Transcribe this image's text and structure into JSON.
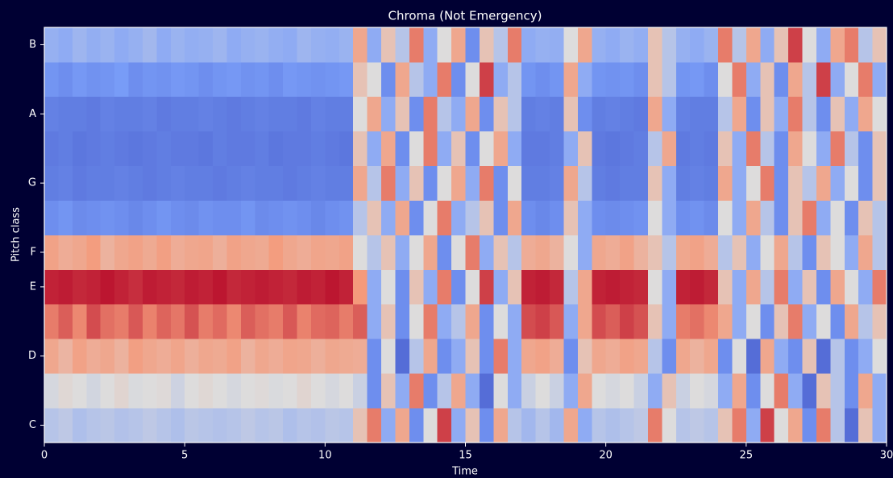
{
  "chart_data": {
    "type": "heatmap",
    "title": "Chroma (Not Emergency)",
    "x_label": "Time",
    "y_label": "Pitch class",
    "colormap": "coolwarm",
    "zlim": [
      0,
      1
    ],
    "xlim": [
      0,
      30
    ],
    "xticks": [
      0,
      5,
      10,
      15,
      20,
      25,
      30
    ],
    "x": [
      0,
      0.5,
      1,
      1.5,
      2,
      2.5,
      3,
      3.5,
      4,
      4.5,
      5,
      5.5,
      6,
      6.5,
      7,
      7.5,
      8,
      8.5,
      9,
      9.5,
      10,
      10.5,
      11,
      11.5,
      12,
      12.5,
      13,
      13.5,
      14,
      14.5,
      15,
      15.5,
      16,
      16.5,
      17,
      17.5,
      18,
      18.5,
      19,
      19.5,
      20,
      20.5,
      21,
      21.5,
      22,
      22.5,
      23,
      23.5,
      24,
      24.5,
      25,
      25.5,
      26,
      26.5,
      27,
      27.5,
      28,
      28.5,
      29,
      29.5,
      30
    ],
    "y_categories": [
      "C",
      null,
      "D",
      null,
      "E",
      "F",
      null,
      "G",
      null,
      "A",
      null,
      "B"
    ],
    "z": [
      [
        0.4,
        0.42,
        0.38,
        0.4,
        0.41,
        0.39,
        0.4,
        0.42,
        0.4,
        0.38,
        0.41,
        0.4,
        0.39,
        0.4,
        0.42,
        0.4,
        0.41,
        0.38,
        0.4,
        0.39,
        0.41,
        0.4,
        0.6,
        0.8,
        0.3,
        0.7,
        0.2,
        0.5,
        0.9,
        0.3,
        0.6,
        0.2,
        0.7,
        0.4,
        0.35,
        0.4,
        0.35,
        0.7,
        0.3,
        0.4,
        0.38,
        0.4,
        0.42,
        0.8,
        0.5,
        0.4,
        0.42,
        0.4,
        0.6,
        0.8,
        0.3,
        0.9,
        0.5,
        0.7,
        0.2,
        0.8,
        0.4,
        0.1,
        0.6,
        0.3
      ],
      [
        0.48,
        0.52,
        0.5,
        0.47,
        0.5,
        0.53,
        0.49,
        0.5,
        0.51,
        0.46,
        0.5,
        0.52,
        0.5,
        0.48,
        0.5,
        0.51,
        0.49,
        0.5,
        0.53,
        0.5,
        0.48,
        0.5,
        0.45,
        0.2,
        0.6,
        0.3,
        0.8,
        0.2,
        0.4,
        0.7,
        0.3,
        0.1,
        0.5,
        0.3,
        0.45,
        0.5,
        0.45,
        0.3,
        0.7,
        0.5,
        0.48,
        0.5,
        0.45,
        0.3,
        0.6,
        0.45,
        0.5,
        0.48,
        0.3,
        0.7,
        0.2,
        0.5,
        0.8,
        0.3,
        0.1,
        0.6,
        0.4,
        0.2,
        0.7,
        0.3
      ],
      [
        0.7,
        0.65,
        0.72,
        0.68,
        0.7,
        0.66,
        0.73,
        0.7,
        0.68,
        0.71,
        0.67,
        0.7,
        0.69,
        0.72,
        0.66,
        0.7,
        0.68,
        0.71,
        0.7,
        0.67,
        0.7,
        0.69,
        0.68,
        0.2,
        0.5,
        0.1,
        0.4,
        0.7,
        0.2,
        0.3,
        0.6,
        0.2,
        0.8,
        0.3,
        0.7,
        0.72,
        0.68,
        0.2,
        0.6,
        0.7,
        0.68,
        0.72,
        0.7,
        0.4,
        0.2,
        0.7,
        0.66,
        0.7,
        0.2,
        0.5,
        0.1,
        0.7,
        0.3,
        0.2,
        0.6,
        0.1,
        0.4,
        0.2,
        0.3,
        0.5
      ],
      [
        0.8,
        0.85,
        0.78,
        0.88,
        0.82,
        0.8,
        0.86,
        0.79,
        0.84,
        0.81,
        0.87,
        0.8,
        0.83,
        0.78,
        0.85,
        0.82,
        0.8,
        0.86,
        0.79,
        0.83,
        0.84,
        0.8,
        0.85,
        0.3,
        0.6,
        0.2,
        0.5,
        0.8,
        0.3,
        0.4,
        0.7,
        0.2,
        0.5,
        0.3,
        0.88,
        0.9,
        0.86,
        0.3,
        0.7,
        0.88,
        0.85,
        0.9,
        0.87,
        0.6,
        0.3,
        0.8,
        0.82,
        0.78,
        0.7,
        0.3,
        0.5,
        0.2,
        0.6,
        0.8,
        0.3,
        0.5,
        0.2,
        0.7,
        0.4,
        0.6
      ],
      [
        0.95,
        0.96,
        0.94,
        0.95,
        0.97,
        0.95,
        0.93,
        0.96,
        0.95,
        0.94,
        0.96,
        0.95,
        0.97,
        0.94,
        0.95,
        0.96,
        0.95,
        0.94,
        0.96,
        0.95,
        0.97,
        0.95,
        0.75,
        0.3,
        0.5,
        0.2,
        0.6,
        0.3,
        0.8,
        0.2,
        0.5,
        0.9,
        0.3,
        0.6,
        0.95,
        0.96,
        0.94,
        0.4,
        0.7,
        0.95,
        0.96,
        0.95,
        0.94,
        0.5,
        0.3,
        0.95,
        0.96,
        0.94,
        0.6,
        0.3,
        0.7,
        0.4,
        0.8,
        0.3,
        0.6,
        0.2,
        0.7,
        0.5,
        0.3,
        0.8
      ],
      [
        0.72,
        0.68,
        0.7,
        0.74,
        0.66,
        0.7,
        0.72,
        0.69,
        0.73,
        0.68,
        0.7,
        0.71,
        0.67,
        0.72,
        0.7,
        0.69,
        0.74,
        0.7,
        0.68,
        0.71,
        0.7,
        0.72,
        0.5,
        0.4,
        0.6,
        0.3,
        0.5,
        0.7,
        0.2,
        0.5,
        0.8,
        0.3,
        0.6,
        0.4,
        0.68,
        0.7,
        0.66,
        0.5,
        0.3,
        0.7,
        0.68,
        0.72,
        0.66,
        0.6,
        0.4,
        0.7,
        0.72,
        0.68,
        0.4,
        0.6,
        0.3,
        0.5,
        0.7,
        0.4,
        0.2,
        0.6,
        0.5,
        0.3,
        0.7,
        0.4
      ],
      [
        0.2,
        0.22,
        0.19,
        0.2,
        0.21,
        0.2,
        0.18,
        0.2,
        0.22,
        0.2,
        0.19,
        0.21,
        0.2,
        0.2,
        0.22,
        0.19,
        0.2,
        0.21,
        0.2,
        0.18,
        0.2,
        0.21,
        0.4,
        0.6,
        0.3,
        0.7,
        0.2,
        0.5,
        0.8,
        0.3,
        0.4,
        0.6,
        0.2,
        0.7,
        0.2,
        0.18,
        0.2,
        0.6,
        0.3,
        0.2,
        0.19,
        0.2,
        0.21,
        0.5,
        0.3,
        0.2,
        0.21,
        0.19,
        0.5,
        0.3,
        0.7,
        0.4,
        0.2,
        0.6,
        0.8,
        0.3,
        0.5,
        0.2,
        0.6,
        0.4
      ],
      [
        0.15,
        0.16,
        0.14,
        0.15,
        0.15,
        0.16,
        0.15,
        0.14,
        0.15,
        0.16,
        0.15,
        0.15,
        0.14,
        0.15,
        0.16,
        0.15,
        0.15,
        0.14,
        0.15,
        0.16,
        0.15,
        0.15,
        0.7,
        0.4,
        0.8,
        0.3,
        0.6,
        0.2,
        0.5,
        0.7,
        0.3,
        0.8,
        0.2,
        0.5,
        0.15,
        0.15,
        0.16,
        0.7,
        0.4,
        0.15,
        0.14,
        0.15,
        0.15,
        0.6,
        0.3,
        0.15,
        0.16,
        0.15,
        0.7,
        0.3,
        0.5,
        0.8,
        0.2,
        0.6,
        0.4,
        0.7,
        0.3,
        0.5,
        0.2,
        0.6
      ],
      [
        0.14,
        0.15,
        0.13,
        0.14,
        0.15,
        0.14,
        0.13,
        0.14,
        0.15,
        0.14,
        0.14,
        0.13,
        0.15,
        0.14,
        0.14,
        0.15,
        0.13,
        0.14,
        0.14,
        0.15,
        0.14,
        0.13,
        0.6,
        0.3,
        0.7,
        0.2,
        0.5,
        0.8,
        0.3,
        0.6,
        0.2,
        0.5,
        0.7,
        0.3,
        0.14,
        0.14,
        0.15,
        0.3,
        0.6,
        0.14,
        0.13,
        0.14,
        0.15,
        0.4,
        0.7,
        0.14,
        0.15,
        0.14,
        0.6,
        0.3,
        0.8,
        0.4,
        0.2,
        0.7,
        0.5,
        0.3,
        0.8,
        0.4,
        0.2,
        0.6
      ],
      [
        0.16,
        0.15,
        0.15,
        0.14,
        0.16,
        0.15,
        0.15,
        0.16,
        0.14,
        0.15,
        0.15,
        0.16,
        0.15,
        0.14,
        0.15,
        0.16,
        0.15,
        0.15,
        0.14,
        0.16,
        0.15,
        0.15,
        0.5,
        0.7,
        0.3,
        0.6,
        0.2,
        0.8,
        0.4,
        0.3,
        0.7,
        0.2,
        0.6,
        0.4,
        0.15,
        0.16,
        0.15,
        0.6,
        0.2,
        0.15,
        0.16,
        0.15,
        0.14,
        0.7,
        0.3,
        0.16,
        0.15,
        0.15,
        0.4,
        0.7,
        0.2,
        0.6,
        0.3,
        0.8,
        0.4,
        0.2,
        0.6,
        0.3,
        0.7,
        0.5
      ],
      [
        0.22,
        0.2,
        0.23,
        0.21,
        0.22,
        0.24,
        0.2,
        0.22,
        0.21,
        0.23,
        0.22,
        0.2,
        0.22,
        0.23,
        0.21,
        0.22,
        0.2,
        0.23,
        0.22,
        0.21,
        0.22,
        0.23,
        0.6,
        0.5,
        0.2,
        0.7,
        0.4,
        0.3,
        0.8,
        0.2,
        0.5,
        0.9,
        0.3,
        0.4,
        0.22,
        0.2,
        0.22,
        0.7,
        0.3,
        0.22,
        0.21,
        0.22,
        0.2,
        0.6,
        0.4,
        0.22,
        0.23,
        0.2,
        0.5,
        0.8,
        0.3,
        0.6,
        0.2,
        0.7,
        0.4,
        0.9,
        0.3,
        0.5,
        0.8,
        0.3
      ],
      [
        0.32,
        0.3,
        0.34,
        0.31,
        0.33,
        0.3,
        0.32,
        0.35,
        0.3,
        0.33,
        0.31,
        0.32,
        0.34,
        0.3,
        0.32,
        0.33,
        0.31,
        0.3,
        0.34,
        0.32,
        0.31,
        0.33,
        0.7,
        0.3,
        0.6,
        0.4,
        0.8,
        0.3,
        0.5,
        0.7,
        0.2,
        0.6,
        0.4,
        0.8,
        0.3,
        0.32,
        0.31,
        0.5,
        0.7,
        0.32,
        0.3,
        0.33,
        0.31,
        0.6,
        0.4,
        0.32,
        0.3,
        0.33,
        0.8,
        0.4,
        0.7,
        0.3,
        0.6,
        0.9,
        0.5,
        0.3,
        0.7,
        0.8,
        0.4,
        0.6
      ]
    ]
  }
}
